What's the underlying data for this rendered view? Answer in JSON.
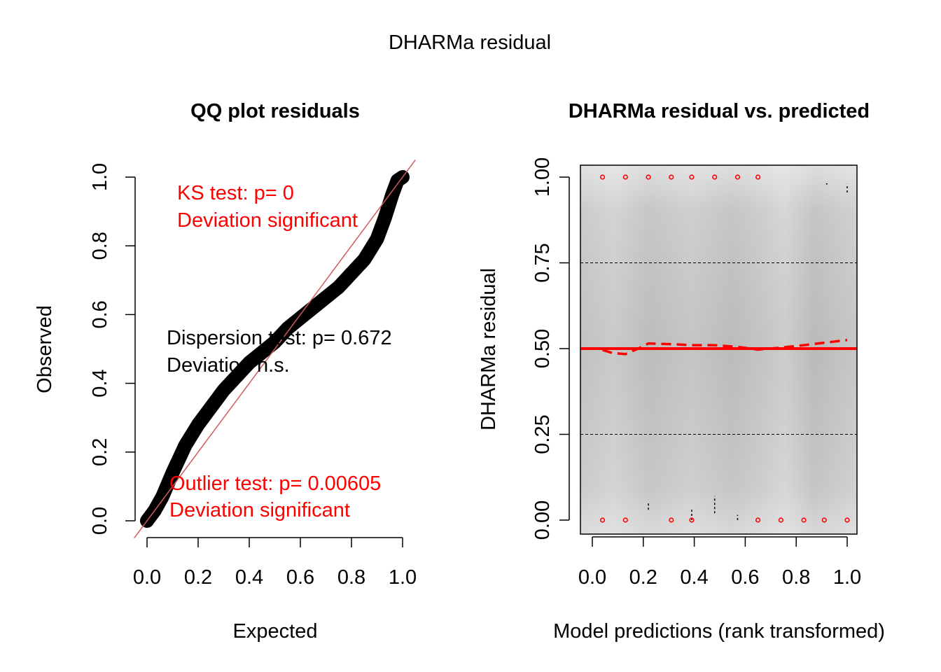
{
  "figure": {
    "title": "DHARMa residual"
  },
  "colors": {
    "red": "#ff0000",
    "identity_line": "#cd5c5c",
    "axis": "#000000",
    "quantile_dashes": "#000000"
  },
  "chart_data": [
    {
      "type": "scatter",
      "title": "QQ plot residuals",
      "xlabel": "Expected",
      "ylabel": "Observed",
      "xlim": [
        0,
        1
      ],
      "ylim": [
        0,
        1
      ],
      "xticks": [
        0.0,
        0.2,
        0.4,
        0.6,
        0.8,
        1.0
      ],
      "xtick_labels": [
        "0.0",
        "0.2",
        "0.4",
        "0.6",
        "0.8",
        "1.0"
      ],
      "yticks": [
        0.0,
        0.2,
        0.4,
        0.6,
        0.8,
        1.0
      ],
      "ytick_labels": [
        "0.0",
        "0.2",
        "0.4",
        "0.6",
        "0.8",
        "1.0"
      ],
      "grid": false,
      "reference_line": {
        "from": [
          0,
          0
        ],
        "to": [
          1,
          1
        ]
      },
      "qq_curve": {
        "x": [
          0.0,
          0.03,
          0.06,
          0.1,
          0.15,
          0.2,
          0.25,
          0.3,
          0.35,
          0.4,
          0.45,
          0.5,
          0.55,
          0.6,
          0.65,
          0.7,
          0.75,
          0.8,
          0.85,
          0.9,
          0.93,
          0.96,
          0.98,
          1.0
        ],
        "y": [
          0.0,
          0.03,
          0.07,
          0.14,
          0.22,
          0.28,
          0.33,
          0.38,
          0.42,
          0.46,
          0.49,
          0.52,
          0.56,
          0.59,
          0.62,
          0.65,
          0.68,
          0.72,
          0.76,
          0.82,
          0.88,
          0.95,
          0.99,
          1.0
        ]
      },
      "annotations": {
        "ks_line1": "KS test: p= 0",
        "ks_line2": "Deviation  significant",
        "disp_line1": "Dispersion test: p= 0.672",
        "disp_line2": "Deviation  n.s.",
        "out_line1": "Outlier test: p= 0.00605",
        "out_line2": "Deviation  significant"
      }
    },
    {
      "type": "scatter",
      "title": "DHARMa residual vs. predicted",
      "xlabel": "Model predictions (rank transformed)",
      "ylabel": "DHARMa residual",
      "xlim": [
        0,
        1
      ],
      "ylim": [
        0,
        1
      ],
      "xticks": [
        0.0,
        0.2,
        0.4,
        0.6,
        0.8,
        1.0
      ],
      "xtick_labels": [
        "0.0",
        "0.2",
        "0.4",
        "0.6",
        "0.8",
        "1.0"
      ],
      "yticks": [
        0.0,
        0.25,
        0.5,
        0.75,
        1.0
      ],
      "ytick_labels": [
        "0.00",
        "0.25",
        "0.50",
        "0.75",
        "1.00"
      ],
      "grid": false,
      "background": "grey density shading",
      "reference_lines": [
        {
          "y": 0.25,
          "style": "dashed"
        },
        {
          "y": 0.5,
          "style": "solid-red"
        },
        {
          "y": 0.75,
          "style": "dashed"
        }
      ],
      "outliers_top_x": [
        0.04,
        0.13,
        0.22,
        0.31,
        0.39,
        0.48,
        0.57,
        0.65
      ],
      "outliers_bottom_x": [
        0.04,
        0.13,
        0.31,
        0.39,
        0.65,
        0.74,
        0.83,
        0.91,
        1.0
      ],
      "quantile_spline": {
        "x": [
          0.04,
          0.08,
          0.13,
          0.18,
          0.22,
          0.31,
          0.39,
          0.48,
          0.57,
          0.65,
          0.74,
          0.83,
          0.91,
          1.0
        ],
        "y": [
          0.496,
          0.487,
          0.484,
          0.5,
          0.515,
          0.513,
          0.51,
          0.51,
          0.505,
          0.497,
          0.503,
          0.51,
          0.517,
          0.525
        ]
      }
    }
  ]
}
